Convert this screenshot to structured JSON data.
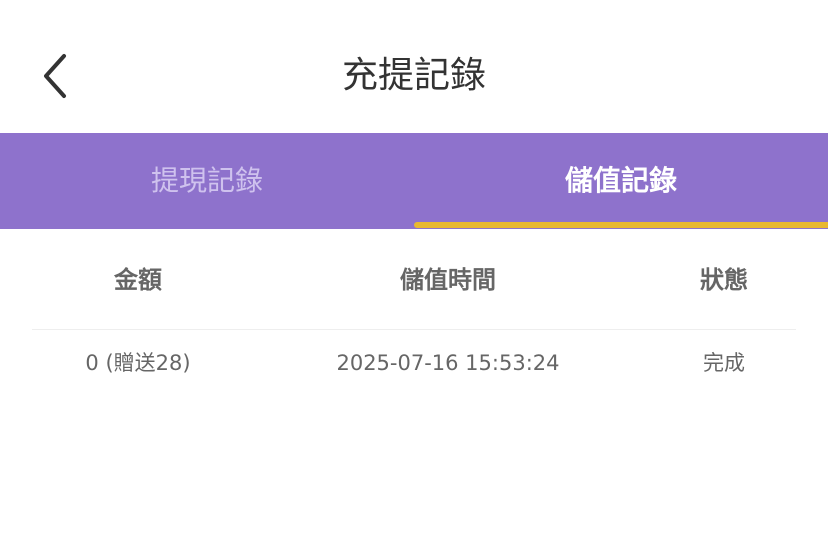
{
  "header": {
    "title": "充提記錄",
    "back_icon": "chevron-left-icon"
  },
  "tabs": [
    {
      "label": "提現記錄",
      "active": false
    },
    {
      "label": "儲值記錄",
      "active": true
    }
  ],
  "colors": {
    "tab_bar": "#8e72cc",
    "indicator": "#e8b830"
  },
  "table": {
    "columns": [
      "金額",
      "儲值時間",
      "狀態"
    ],
    "rows": [
      [
        "0 (贈送28)",
        "2025-07-16 15:53:24",
        "完成"
      ]
    ]
  }
}
